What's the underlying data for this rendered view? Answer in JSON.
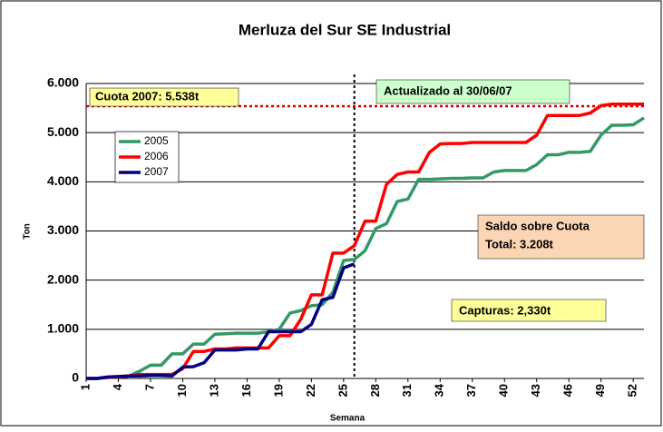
{
  "chart_data": {
    "type": "line",
    "title": "Merluza del Sur SE Industrial",
    "x_label": "Semana",
    "y_label": "Ton",
    "x": [
      1,
      2,
      3,
      4,
      5,
      6,
      7,
      8,
      9,
      10,
      11,
      12,
      13,
      14,
      15,
      16,
      17,
      18,
      19,
      20,
      21,
      22,
      23,
      24,
      25,
      26,
      27,
      28,
      29,
      30,
      31,
      32,
      33,
      34,
      35,
      36,
      37,
      38,
      39,
      40,
      41,
      42,
      43,
      44,
      45,
      46,
      47,
      48,
      49,
      50,
      51,
      52,
      53
    ],
    "xlim": [
      1,
      53
    ],
    "xticks": [
      1,
      4,
      7,
      10,
      13,
      16,
      19,
      22,
      25,
      28,
      31,
      34,
      37,
      40,
      43,
      46,
      49,
      52
    ],
    "ylim": [
      0,
      6000
    ],
    "yticks": [
      0,
      {
        "value": 1000,
        "label": "1.000"
      },
      {
        "value": 2000,
        "label": "2.000"
      },
      {
        "value": 3000,
        "label": "3.000"
      },
      {
        "value": 4000,
        "label": "4.000"
      },
      {
        "value": 5000,
        "label": "5.000"
      },
      {
        "value": 6000,
        "label": "6.000"
      }
    ],
    "grid": true,
    "series": [
      {
        "name": "2005",
        "color": "#339966",
        "values": [
          0,
          0,
          20,
          30,
          50,
          150,
          270,
          270,
          500,
          500,
          700,
          700,
          900,
          910,
          920,
          920,
          920,
          950,
          1000,
          1330,
          1380,
          1480,
          1500,
          1750,
          2400,
          2420,
          2600,
          3050,
          3150,
          3600,
          3650,
          4050,
          4050,
          4060,
          4070,
          4070,
          4080,
          4080,
          4200,
          4230,
          4230,
          4230,
          4350,
          4550,
          4550,
          4600,
          4600,
          4620,
          4950,
          5150,
          5150,
          5160,
          5300
        ]
      },
      {
        "name": "2006",
        "color": "#ff0000",
        "values": [
          0,
          0,
          20,
          30,
          50,
          80,
          80,
          80,
          80,
          200,
          550,
          550,
          600,
          600,
          620,
          620,
          620,
          620,
          870,
          870,
          1200,
          1700,
          1700,
          2550,
          2550,
          2700,
          3200,
          3200,
          3950,
          4150,
          4200,
          4200,
          4600,
          4770,
          4780,
          4780,
          4800,
          4800,
          4800,
          4800,
          4800,
          4800,
          4950,
          5350,
          5350,
          5350,
          5350,
          5400,
          5550,
          5580,
          5580,
          5580,
          5580
        ]
      },
      {
        "name": "2007",
        "color": "#000080",
        "values": [
          0,
          0,
          30,
          40,
          50,
          50,
          60,
          60,
          50,
          230,
          240,
          320,
          580,
          580,
          580,
          600,
          600,
          950,
          950,
          950,
          950,
          1100,
          1600,
          1650,
          2250,
          2330,
          null,
          null,
          null,
          null,
          null,
          null,
          null,
          null,
          null,
          null,
          null,
          null,
          null,
          null,
          null,
          null,
          null,
          null,
          null,
          null,
          null,
          null,
          null,
          null,
          null,
          null,
          null
        ]
      }
    ],
    "quota": {
      "value": 5538,
      "label": "Cuota 2007: 5.538t",
      "color": "#cc0000"
    },
    "marker_week": 26,
    "annotations": [
      {
        "lines": [
          "Actualizado al 30/06/07"
        ],
        "color": "#ccffcc"
      },
      {
        "lines": [
          "Saldo sobre Cuota",
          "Total: 3.208t"
        ],
        "color": "#fcd5b4"
      },
      {
        "lines": [
          "Capturas: 2,330t"
        ],
        "color": "#ffff99"
      }
    ]
  }
}
